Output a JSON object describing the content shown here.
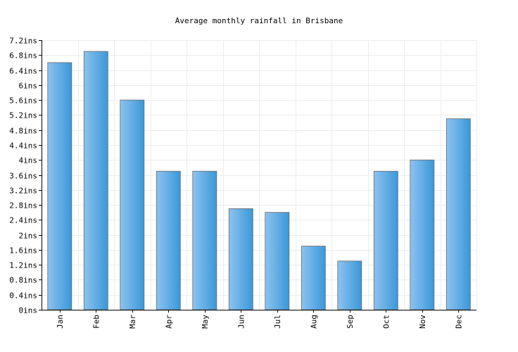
{
  "chart_data": {
    "type": "bar",
    "title": "Average monthly rainfall in Brisbane",
    "xlabel": "",
    "ylabel": "",
    "categories": [
      "Jan",
      "Feb",
      "Mar",
      "Apr",
      "May",
      "Jun",
      "Jul",
      "Aug",
      "Sep",
      "Oct",
      "Nov",
      "Dec"
    ],
    "values": [
      6.6,
      6.9,
      5.6,
      3.7,
      3.7,
      2.7,
      2.6,
      1.7,
      1.3,
      3.7,
      4.0,
      5.1
    ],
    "unit": "ins",
    "ylim": [
      0,
      7.2
    ],
    "yticks": [
      "0ins",
      "0.4ins",
      "0.8ins",
      "1.2ins",
      "1.6ins",
      "2ins",
      "2.4ins",
      "2.8ins",
      "3.2ins",
      "3.6ins",
      "4ins",
      "4.4ins",
      "4.8ins",
      "5.2ins",
      "5.6ins",
      "6ins",
      "6.4ins",
      "6.8ins",
      "7.2ins"
    ],
    "ytick_values": [
      0,
      0.4,
      0.8,
      1.2,
      1.6,
      2,
      2.4,
      2.8,
      3.2,
      3.6,
      4,
      4.4,
      4.8,
      5.2,
      5.6,
      6,
      6.4,
      6.8,
      7.2
    ],
    "grid": true,
    "legend": "none",
    "bar_color_light": "#8cc3f0",
    "bar_color_dark": "#3a98d8"
  }
}
